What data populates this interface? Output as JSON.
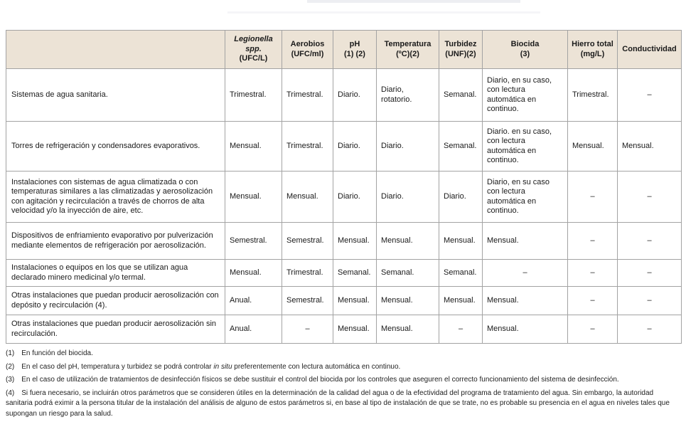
{
  "page": {
    "background": "#ffffff"
  },
  "table": {
    "colors": {
      "header_bg": "#ece3d6",
      "border": "#a3a3a3",
      "outer_border": "#8c8c8c",
      "text": "#1a1a1a"
    },
    "dash": "–",
    "headers": [
      {
        "title": ""
      },
      {
        "italic": "Legionella spp.",
        "sub": "(UFC/L)"
      },
      {
        "title": "Aerobios",
        "sub": "(UFC/ml)"
      },
      {
        "title": "pH",
        "sub": "(1) (2)"
      },
      {
        "title": "Temperatura",
        "sub": "(ºC)(2)"
      },
      {
        "title": "Turbidez",
        "sub": "(UNF)(2)"
      },
      {
        "title": "Biocida",
        "sub": "(3)"
      },
      {
        "title": "Hierro total",
        "sub": "(mg/L)"
      },
      {
        "title": "Conductividad"
      }
    ],
    "rows": [
      {
        "label": "Sistemas de agua sanitaria.",
        "cells": [
          "Trimestral.",
          "Trimestral.",
          "Diario.",
          "Diario, rotatorio.",
          "Semanal.",
          "Diario, en su caso, con lectura automática en continuo.",
          "Trimestral.",
          "–"
        ]
      },
      {
        "label": "Torres de refrigeración y condensadores evaporativos.",
        "cells": [
          "Mensual.",
          "Trimestral.",
          "Diario.",
          "Diario.",
          "Semanal.",
          "Diario. en su caso, con lectura automática en continuo.",
          "Mensual.",
          "Mensual."
        ]
      },
      {
        "label": "Instalaciones con sistemas de agua climatizada o con temperaturas similares a las climatizadas y aerosolización con agitación y recirculación a través de chorros de alta velocidad y/o la inyección de aire, etc.",
        "cells": [
          "Mensual.",
          "Mensual.",
          "Diario.",
          "Diario.",
          "Diario.",
          "Diario, en su caso con lectura automática en continuo.",
          "–",
          "–"
        ]
      },
      {
        "label": "Dispositivos de enfriamiento evaporativo por pulverización mediante elementos de refrigeración por aerosolización.",
        "cells": [
          "Semestral.",
          "Semestral.",
          "Mensual.",
          "Mensual.",
          "Mensual.",
          "Mensual.",
          "–",
          "–"
        ]
      },
      {
        "label": "Instalaciones o equipos en los que se utilizan agua declarado minero medicinal y/o termal.",
        "cells": [
          "Mensual.",
          "Trimestral.",
          "Semanal.",
          "Semanal.",
          "Semanal.",
          "–",
          "–",
          "–"
        ]
      },
      {
        "label": "Otras instalaciones que puedan producir aerosolización con depósito y recirculación (4).",
        "cells": [
          "Anual.",
          "Semestral.",
          "Mensual.",
          "Mensual.",
          "Mensual.",
          "Mensual.",
          "–",
          "–"
        ]
      },
      {
        "label": "Otras instalaciones que puedan producir aerosolización sin recirculación.",
        "cells": [
          "Anual.",
          "–",
          "Mensual.",
          "Mensual.",
          "–",
          "Mensual.",
          "–",
          "–"
        ]
      }
    ]
  },
  "footnotes": [
    {
      "num": "(1)",
      "text": "En función del biocida."
    },
    {
      "num": "(2)",
      "pre": "En el caso del pH, temperatura y turbidez se podrá controlar ",
      "italic": "in situ",
      "post": " preferentemente con lectura automática en continuo."
    },
    {
      "num": "(3)",
      "text": "En el caso de utilización de tratamientos de desinfección físicos se debe sustituir el control del biocida por los controles que aseguren el correcto funcionamiento del sistema de desinfección."
    },
    {
      "num": "(4)",
      "text": "Si fuera necesario, se incluirán otros parámetros que se consideren útiles en la determinación de la calidad del agua o de la efectividad del programa de tratamiento del agua. Sin embargo, la autoridad sanitaria podrá eximir a la persona titular de la instalación del análisis de alguno de estos parámetros si, en base al tipo de instalación de que se trate, no es probable su presencia en el agua en niveles tales que supongan un riesgo para la salud."
    }
  ]
}
